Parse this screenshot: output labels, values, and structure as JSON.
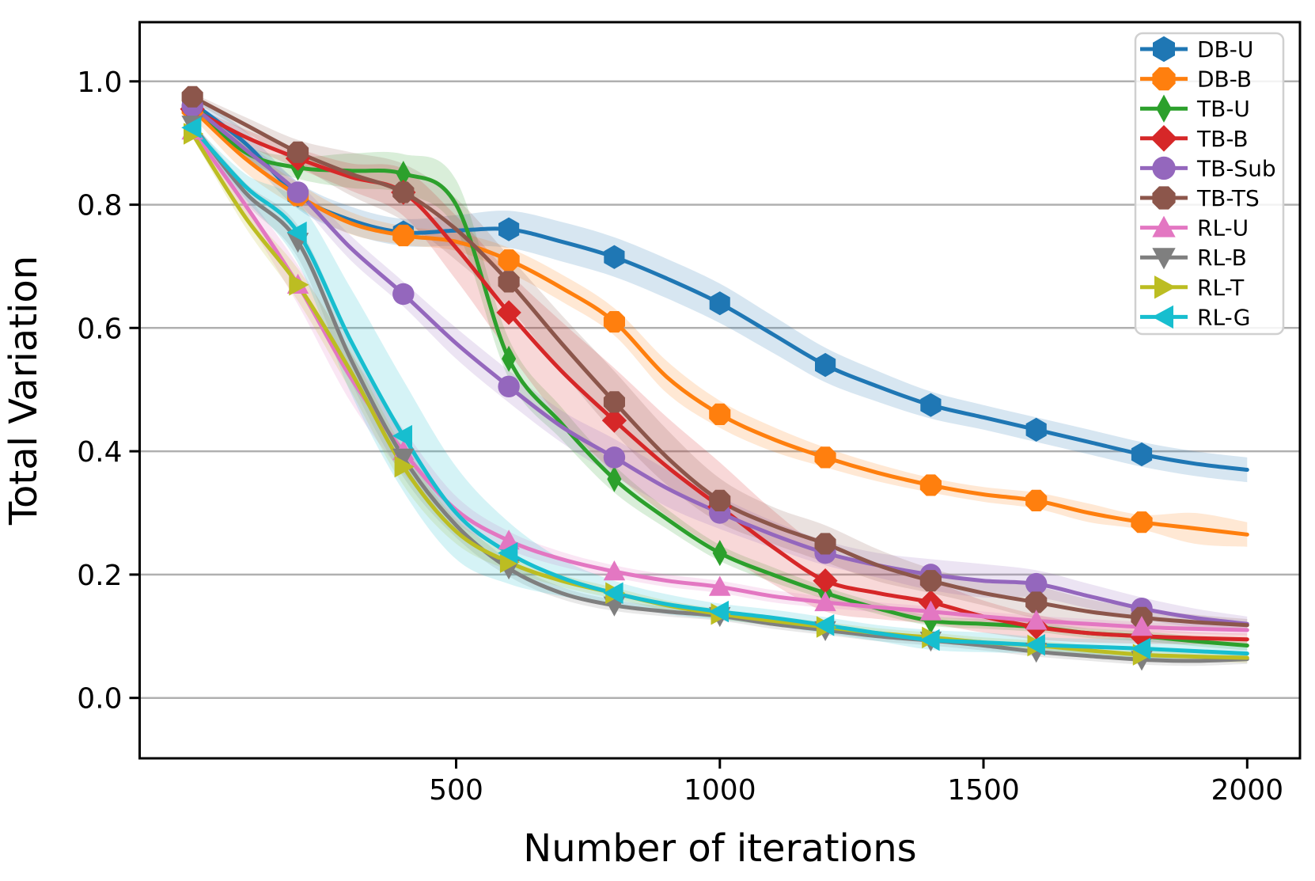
{
  "figure": {
    "background": "#ffffff"
  },
  "chart_data": {
    "type": "line",
    "title": "",
    "xlabel": "Number of iterations",
    "ylabel": "Total Variation",
    "xlim": [
      -100,
      2100
    ],
    "ylim": [
      -0.098,
      1.096
    ],
    "grid": "horizontal",
    "grid_color": "#b0b0b0",
    "spine_color": "#000000",
    "legend_position": "upper right",
    "legend_border_color": "#d0d0d0",
    "legend_background": "#ffffff",
    "xtick_labels": [
      "500",
      "1000",
      "1500",
      "2000"
    ],
    "xtick_values": [
      500,
      1000,
      1500,
      2000
    ],
    "ytick_labels": [
      "0.0",
      "0.2",
      "0.4",
      "0.6",
      "0.8",
      "1.0"
    ],
    "ytick_values": [
      0,
      0.2,
      0.4,
      0.6,
      0.8,
      1.0
    ],
    "x": [
      0,
      100,
      200,
      300,
      400,
      500,
      600,
      700,
      800,
      900,
      1000,
      1100,
      1200,
      1300,
      1400,
      1500,
      1600,
      1700,
      1800,
      1900,
      2000
    ],
    "marker_x": [
      0,
      200,
      400,
      600,
      800,
      1000,
      1200,
      1400,
      1600,
      1800
    ],
    "series": [
      {
        "name": "DB-U",
        "color": "#1f77b4",
        "marker": "hexagon",
        "values": [
          0.965,
          0.9,
          0.815,
          0.775,
          0.755,
          0.758,
          0.76,
          0.74,
          0.715,
          0.68,
          0.64,
          0.59,
          0.54,
          0.505,
          0.475,
          0.455,
          0.435,
          0.415,
          0.395,
          0.38,
          0.37
        ],
        "band": [
          0.012,
          0.02,
          0.022,
          0.022,
          0.022,
          0.025,
          0.03,
          0.032,
          0.032,
          0.032,
          0.032,
          0.03,
          0.028,
          0.025,
          0.022,
          0.02,
          0.02,
          0.02,
          0.02,
          0.02,
          0.02
        ]
      },
      {
        "name": "DB-B",
        "color": "#ff7f0e",
        "marker": "octagon",
        "values": [
          0.955,
          0.875,
          0.815,
          0.77,
          0.75,
          0.74,
          0.71,
          0.665,
          0.61,
          0.52,
          0.46,
          0.42,
          0.39,
          0.365,
          0.345,
          0.33,
          0.32,
          0.3,
          0.285,
          0.275,
          0.265
        ],
        "band": [
          0.012,
          0.022,
          0.02,
          0.018,
          0.015,
          0.015,
          0.02,
          0.022,
          0.022,
          0.026,
          0.022,
          0.02,
          0.016,
          0.014,
          0.012,
          0.012,
          0.013,
          0.015,
          0.012,
          0.025,
          0.02
        ]
      },
      {
        "name": "TB-U",
        "color": "#2ca02c",
        "marker": "thin-diamond",
        "values": [
          0.965,
          0.885,
          0.86,
          0.855,
          0.85,
          0.8,
          0.55,
          0.445,
          0.355,
          0.29,
          0.235,
          0.2,
          0.17,
          0.145,
          0.125,
          0.12,
          0.115,
          0.105,
          0.1,
          0.092,
          0.085
        ],
        "band": [
          0.006,
          0.012,
          0.018,
          0.028,
          0.032,
          0.04,
          0.032,
          0.026,
          0.022,
          0.016,
          0.013,
          0.012,
          0.01,
          0.009,
          0.008,
          0.008,
          0.008,
          0.008,
          0.008,
          0.008,
          0.008
        ]
      },
      {
        "name": "TB-B",
        "color": "#d62728",
        "marker": "diamond",
        "values": [
          0.955,
          0.91,
          0.875,
          0.845,
          0.82,
          0.73,
          0.625,
          0.53,
          0.45,
          0.375,
          0.31,
          0.245,
          0.19,
          0.17,
          0.155,
          0.132,
          0.115,
          0.105,
          0.1,
          0.097,
          0.095
        ],
        "band": [
          0.006,
          0.012,
          0.016,
          0.022,
          0.038,
          0.052,
          0.065,
          0.08,
          0.085,
          0.08,
          0.072,
          0.06,
          0.05,
          0.042,
          0.035,
          0.026,
          0.02,
          0.015,
          0.012,
          0.01,
          0.01
        ]
      },
      {
        "name": "TB-Sub",
        "color": "#9467bd",
        "marker": "circle",
        "values": [
          0.96,
          0.89,
          0.82,
          0.73,
          0.655,
          0.575,
          0.505,
          0.44,
          0.39,
          0.34,
          0.3,
          0.265,
          0.235,
          0.215,
          0.2,
          0.19,
          0.185,
          0.165,
          0.145,
          0.13,
          0.12
        ],
        "band": [
          0.006,
          0.012,
          0.016,
          0.02,
          0.02,
          0.025,
          0.026,
          0.026,
          0.03,
          0.03,
          0.026,
          0.022,
          0.02,
          0.02,
          0.025,
          0.027,
          0.022,
          0.02,
          0.018,
          0.015,
          0.012
        ]
      },
      {
        "name": "TB-TS",
        "color": "#8c564b",
        "marker": "octagon",
        "values": [
          0.975,
          0.93,
          0.885,
          0.85,
          0.82,
          0.76,
          0.675,
          0.575,
          0.48,
          0.39,
          0.32,
          0.28,
          0.25,
          0.215,
          0.19,
          0.17,
          0.155,
          0.14,
          0.13,
          0.123,
          0.118
        ],
        "band": [
          0.006,
          0.012,
          0.02,
          0.035,
          0.046,
          0.05,
          0.042,
          0.046,
          0.05,
          0.045,
          0.036,
          0.03,
          0.03,
          0.026,
          0.02,
          0.02,
          0.026,
          0.02,
          0.015,
          0.012,
          0.01
        ]
      },
      {
        "name": "RL-U",
        "color": "#e377c2",
        "marker": "triangle-up",
        "values": [
          0.92,
          0.8,
          0.67,
          0.52,
          0.4,
          0.305,
          0.255,
          0.225,
          0.205,
          0.19,
          0.18,
          0.165,
          0.155,
          0.147,
          0.14,
          0.132,
          0.125,
          0.12,
          0.115,
          0.112,
          0.11
        ],
        "band": [
          0.006,
          0.02,
          0.032,
          0.04,
          0.036,
          0.022,
          0.015,
          0.012,
          0.01,
          0.01,
          0.01,
          0.01,
          0.009,
          0.008,
          0.008,
          0.008,
          0.008,
          0.008,
          0.008,
          0.008,
          0.008
        ]
      },
      {
        "name": "RL-B",
        "color": "#7f7f7f",
        "marker": "triangle-down",
        "values": [
          0.93,
          0.82,
          0.74,
          0.55,
          0.39,
          0.28,
          0.21,
          0.17,
          0.15,
          0.14,
          0.133,
          0.12,
          0.11,
          0.1,
          0.093,
          0.085,
          0.075,
          0.068,
          0.062,
          0.06,
          0.063
        ],
        "band": [
          0.006,
          0.016,
          0.026,
          0.036,
          0.032,
          0.02,
          0.013,
          0.01,
          0.009,
          0.008,
          0.008,
          0.008,
          0.008,
          0.008,
          0.008,
          0.008,
          0.008,
          0.008,
          0.008,
          0.008,
          0.008
        ]
      },
      {
        "name": "RL-T",
        "color": "#bcbd22",
        "marker": "triangle-right",
        "values": [
          0.915,
          0.78,
          0.67,
          0.53,
          0.375,
          0.27,
          0.22,
          0.19,
          0.17,
          0.15,
          0.136,
          0.125,
          0.115,
          0.105,
          0.098,
          0.09,
          0.085,
          0.077,
          0.07,
          0.067,
          0.065
        ],
        "band": [
          0.006,
          0.016,
          0.026,
          0.032,
          0.03,
          0.02,
          0.013,
          0.01,
          0.009,
          0.008,
          0.008,
          0.008,
          0.008,
          0.008,
          0.008,
          0.008,
          0.008,
          0.008,
          0.008,
          0.008,
          0.008
        ]
      },
      {
        "name": "RL-G",
        "color": "#17becf",
        "marker": "triangle-left",
        "values": [
          0.925,
          0.83,
          0.755,
          0.58,
          0.425,
          0.3,
          0.235,
          0.195,
          0.17,
          0.152,
          0.14,
          0.13,
          0.118,
          0.105,
          0.094,
          0.09,
          0.086,
          0.083,
          0.08,
          0.076,
          0.072
        ],
        "band": [
          0.006,
          0.02,
          0.05,
          0.085,
          0.09,
          0.075,
          0.05,
          0.03,
          0.02,
          0.016,
          0.013,
          0.013,
          0.013,
          0.013,
          0.016,
          0.016,
          0.013,
          0.013,
          0.016,
          0.012,
          0.01
        ]
      }
    ]
  }
}
